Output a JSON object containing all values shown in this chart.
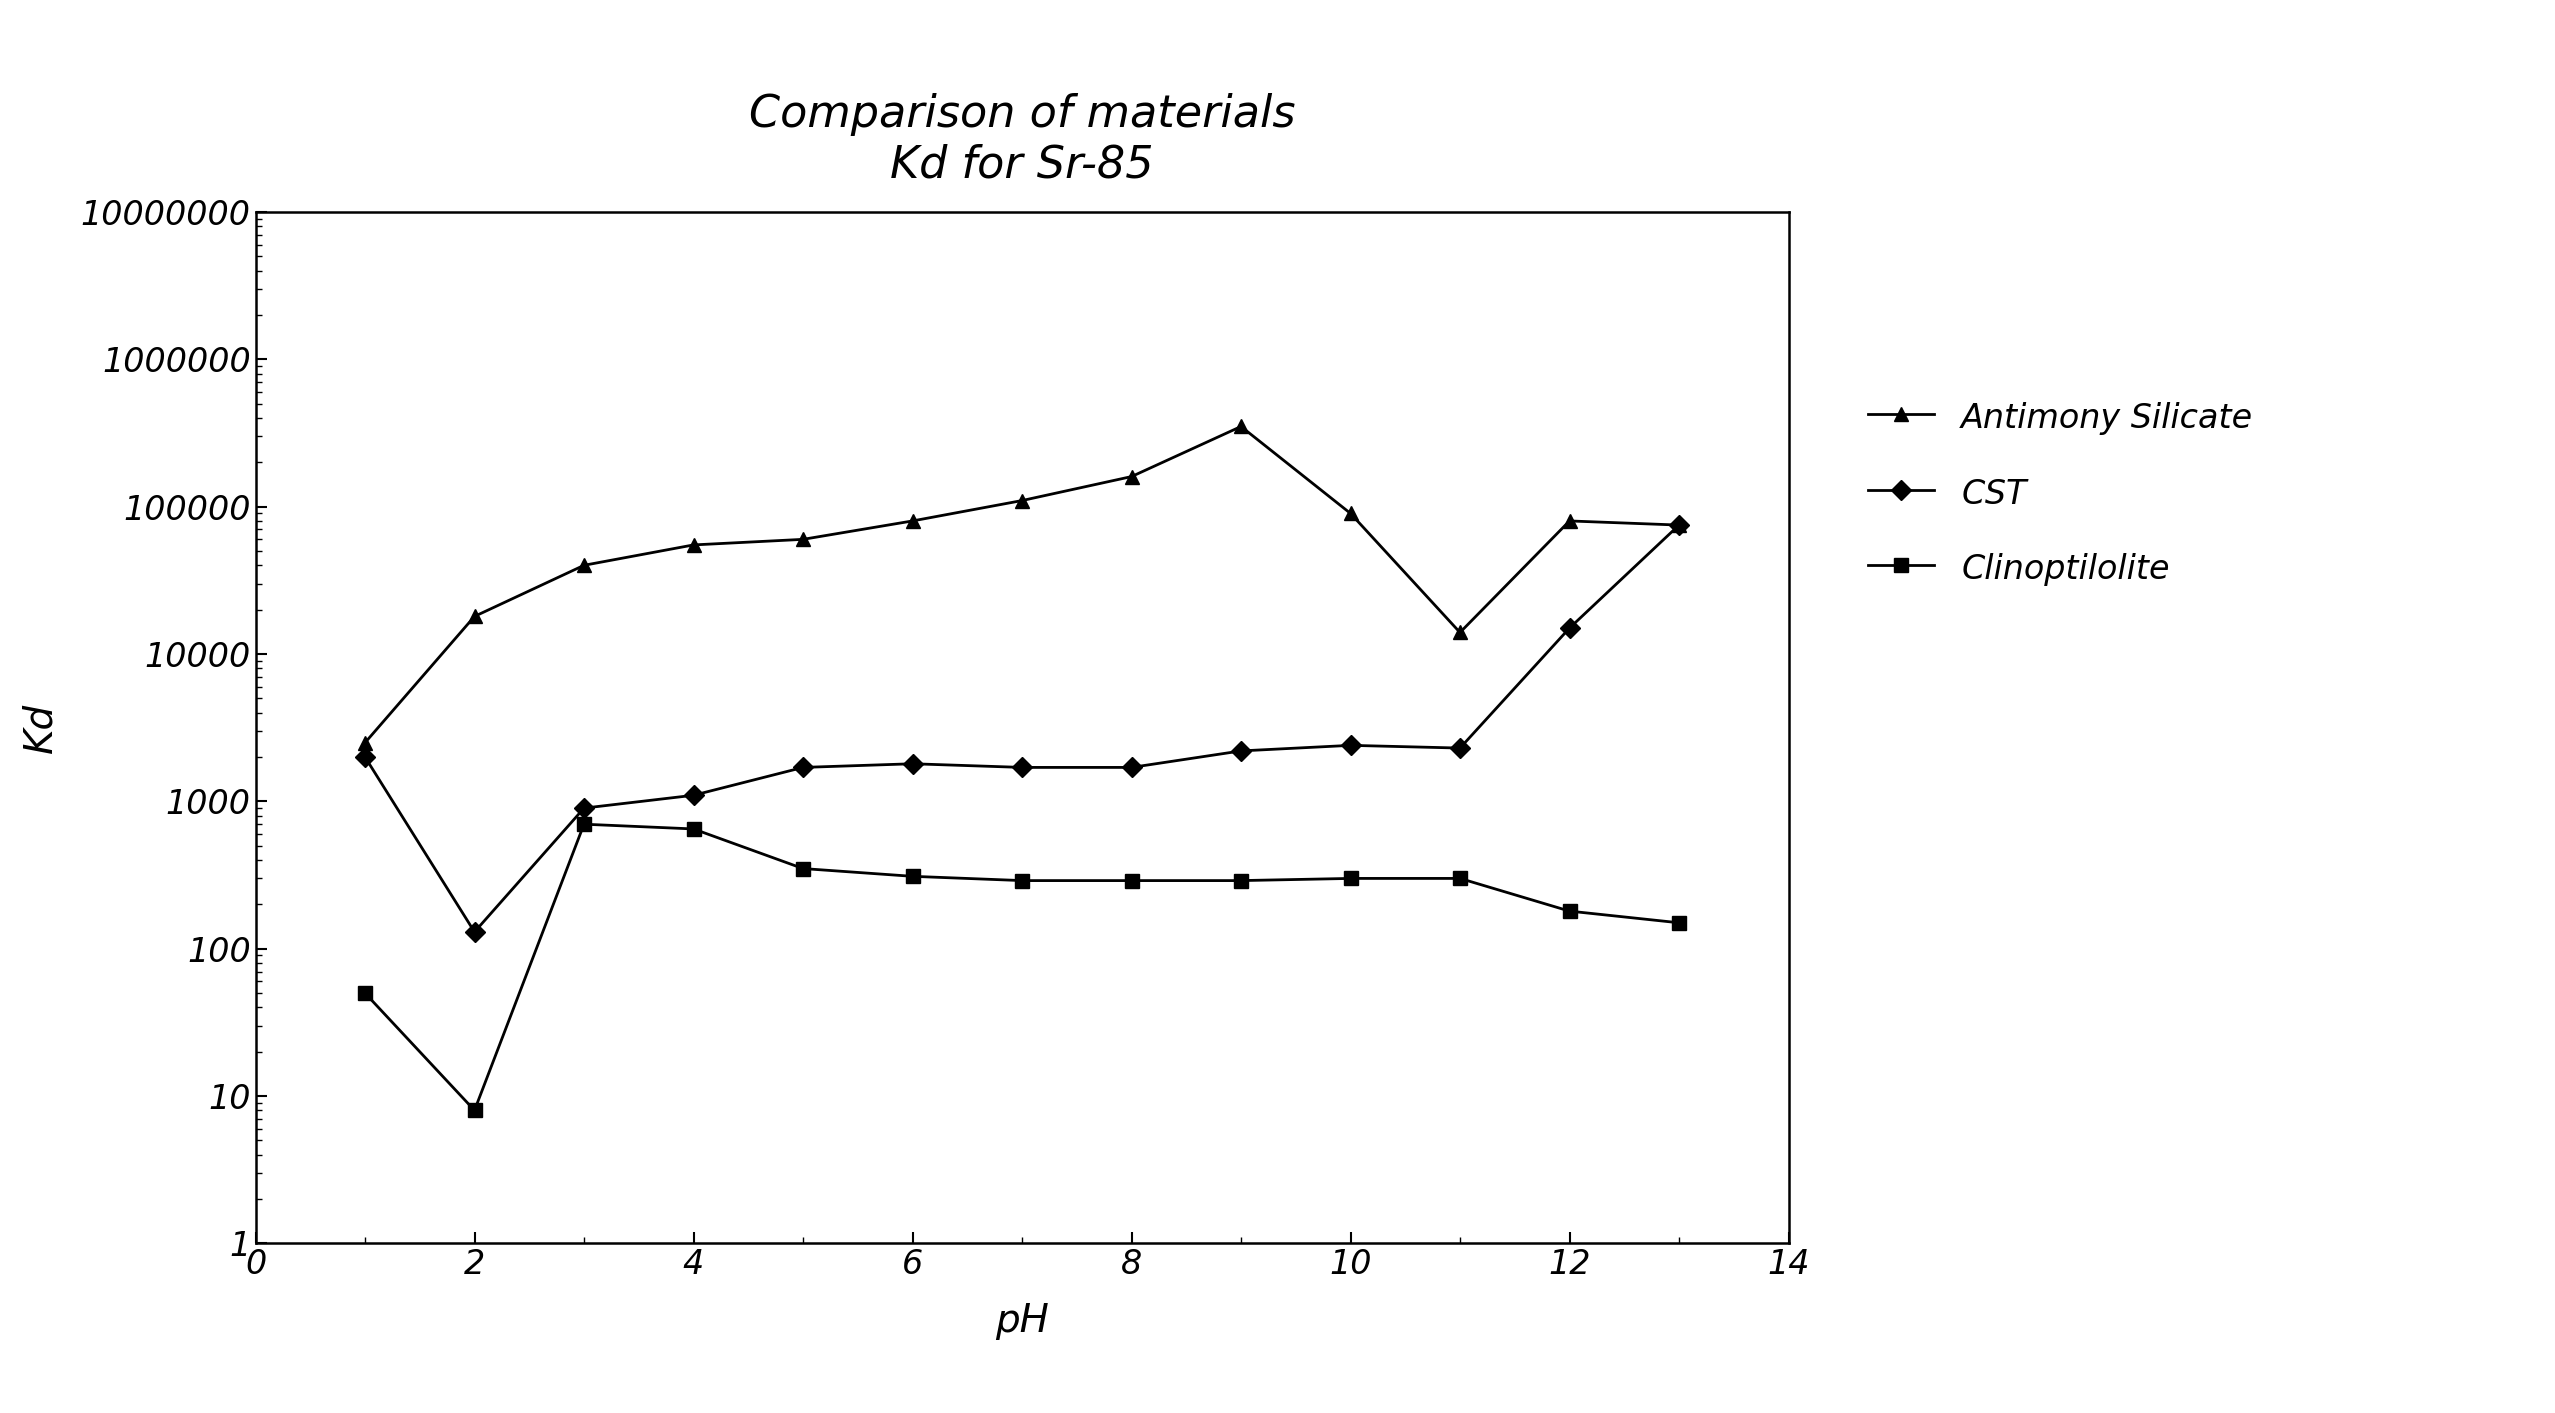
{
  "title_line1": "Comparison of materials",
  "title_line2": "Kd for Sr-85",
  "xlabel": "pH",
  "ylabel": "Kd",
  "xlim": [
    0,
    14
  ],
  "ylim": [
    1,
    10000000
  ],
  "xticks": [
    0,
    2,
    4,
    6,
    8,
    10,
    12,
    14
  ],
  "yticks": [
    1,
    10,
    100,
    1000,
    10000,
    100000,
    1000000,
    10000000
  ],
  "ytick_labels": [
    "1",
    "10",
    "100",
    "1000",
    "10000",
    "100000",
    "1000000",
    "10000000"
  ],
  "series": [
    {
      "label": "Antimony Silicate",
      "marker": "^",
      "x": [
        1,
        2,
        3,
        4,
        5,
        6,
        7,
        8,
        9,
        10,
        11,
        12,
        13
      ],
      "y": [
        2500,
        18000,
        40000,
        55000,
        60000,
        80000,
        110000,
        160000,
        350000,
        90000,
        14000,
        80000,
        75000
      ]
    },
    {
      "label": "CST",
      "marker": "D",
      "x": [
        1,
        2,
        3,
        4,
        5,
        6,
        7,
        8,
        9,
        10,
        11,
        12,
        13
      ],
      "y": [
        2000,
        130,
        900,
        1100,
        1700,
        1800,
        1700,
        1700,
        2200,
        2400,
        2300,
        15000,
        75000
      ]
    },
    {
      "label": "Clinoptilolite",
      "marker": "s",
      "x": [
        1,
        2,
        3,
        4,
        5,
        6,
        7,
        8,
        9,
        10,
        11,
        12,
        13
      ],
      "y": [
        50,
        8,
        700,
        650,
        350,
        310,
        290,
        290,
        290,
        300,
        300,
        180,
        150
      ]
    }
  ],
  "line_color": "#000000",
  "background_color": "#ffffff",
  "title_fontsize": 32,
  "label_fontsize": 28,
  "tick_fontsize": 24,
  "legend_fontsize": 24,
  "figwidth": 25.55,
  "figheight": 14.13,
  "dpi": 100
}
